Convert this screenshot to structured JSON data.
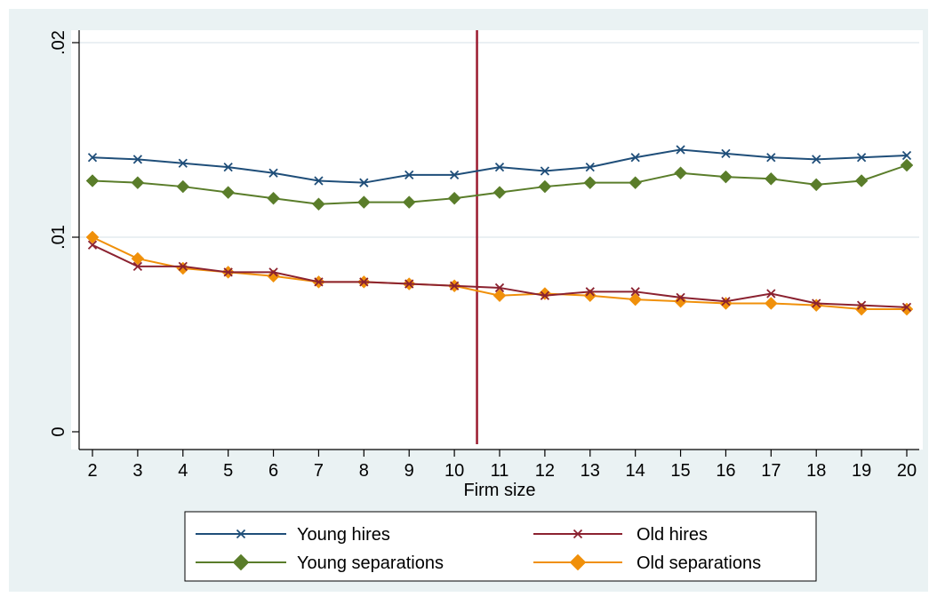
{
  "chart_data": {
    "type": "line",
    "title": "",
    "xlabel": "Firm size",
    "ylabel": "",
    "x": [
      2,
      3,
      4,
      5,
      6,
      7,
      8,
      9,
      10,
      11,
      12,
      13,
      14,
      15,
      16,
      17,
      18,
      19,
      20
    ],
    "x_ticks": [
      "2",
      "3",
      "4",
      "5",
      "6",
      "7",
      "8",
      "9",
      "10",
      "11",
      "12",
      "13",
      "14",
      "15",
      "16",
      "17",
      "18",
      "19",
      "20"
    ],
    "xlim": [
      2,
      20
    ],
    "ylim": [
      0,
      0.02
    ],
    "y_ticks": [
      {
        "value": 0,
        "label": "0"
      },
      {
        "value": 0.01,
        "label": ".01"
      },
      {
        "value": 0.02,
        "label": ".02"
      }
    ],
    "grid": true,
    "vline": {
      "x": 10.5,
      "color": "#9b1b30"
    },
    "legend_position": "bottom",
    "series": [
      {
        "name": "Young hires",
        "marker": "x",
        "color": "#1f4e79",
        "values": [
          0.0141,
          0.014,
          0.0138,
          0.0136,
          0.0133,
          0.0129,
          0.0128,
          0.0132,
          0.0132,
          0.0136,
          0.0134,
          0.0136,
          0.0141,
          0.0145,
          0.0143,
          0.0141,
          0.014,
          0.0141,
          0.0142
        ]
      },
      {
        "name": "Old hires",
        "marker": "x",
        "color": "#8b2230",
        "values": [
          0.0096,
          0.0085,
          0.0085,
          0.0082,
          0.0082,
          0.0077,
          0.0077,
          0.0076,
          0.0075,
          0.0074,
          0.007,
          0.0072,
          0.0072,
          0.0069,
          0.0067,
          0.0071,
          0.0066,
          0.0065,
          0.0064
        ]
      },
      {
        "name": "Young separations",
        "marker": "diamond",
        "color": "#5a7d2a",
        "values": [
          0.0129,
          0.0128,
          0.0126,
          0.0123,
          0.012,
          0.0117,
          0.0118,
          0.0118,
          0.012,
          0.0123,
          0.0126,
          0.0128,
          0.0128,
          0.0133,
          0.0131,
          0.013,
          0.0127,
          0.0129,
          0.0137
        ]
      },
      {
        "name": "Old separations",
        "marker": "diamond",
        "color": "#f0900a",
        "values": [
          0.01,
          0.0089,
          0.0084,
          0.0082,
          0.008,
          0.0077,
          0.0077,
          0.0076,
          0.0075,
          0.007,
          0.0071,
          0.007,
          0.0068,
          0.0067,
          0.0066,
          0.0066,
          0.0065,
          0.0063,
          0.0063
        ]
      }
    ]
  }
}
